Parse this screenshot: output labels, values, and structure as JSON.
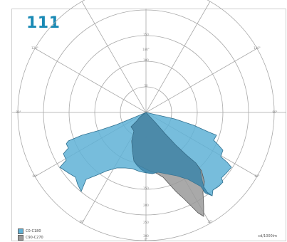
{
  "title": "111",
  "unit_label": "cd/1000lm",
  "angle_labels": [
    "180°",
    "120°",
    "120°",
    "90°",
    "90°",
    "60°",
    "60°",
    "30°",
    "30°",
    "0°"
  ],
  "ring_labels": [
    "150",
    "100",
    "50",
    "50",
    "100",
    "150",
    "200",
    "250",
    "300"
  ],
  "legend": [
    {
      "label": "C0-C180",
      "color": "#5fb1d6"
    },
    {
      "label": "C90-C270",
      "color": "#9a9a9a"
    }
  ],
  "colors": {
    "title": "#1a8ab5",
    "c0": "#5fb1d6",
    "c90": "#9a9a9a",
    "overlap": "#3f86aa",
    "grid": "#a8a8a8"
  }
}
